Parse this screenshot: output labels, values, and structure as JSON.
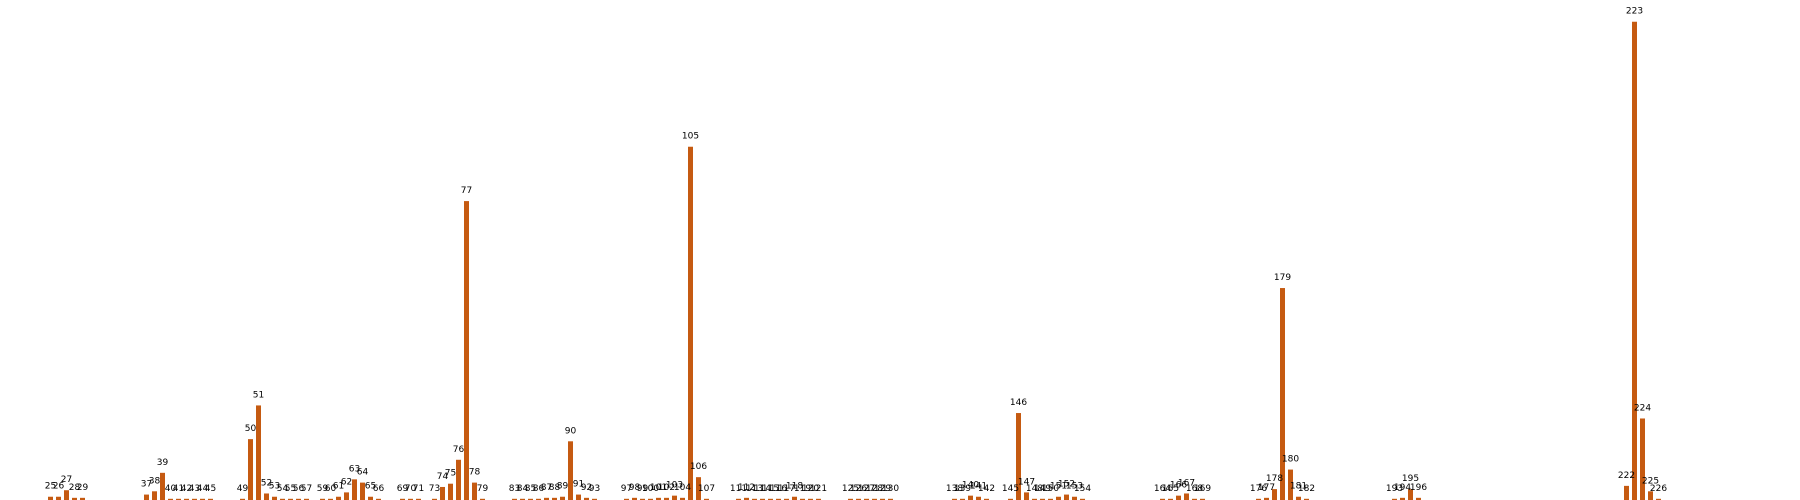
{
  "chart_data": {
    "type": "bar",
    "title": "",
    "xlabel": "",
    "ylabel": "",
    "ylim": [
      0,
      4.6
    ],
    "grid": false,
    "axes_visible": false,
    "bar_color": "#c55a11",
    "points": [
      {
        "x": 25,
        "y": 0.03,
        "label": "25"
      },
      {
        "x": 26,
        "y": 0.03,
        "label": "26"
      },
      {
        "x": 27,
        "y": 0.09,
        "label": "27"
      },
      {
        "x": 28,
        "y": 0.02,
        "label": "28"
      },
      {
        "x": 29,
        "y": 0.02,
        "label": "29"
      },
      {
        "x": 37,
        "y": 0.05,
        "label": "37"
      },
      {
        "x": 38,
        "y": 0.08,
        "label": "38"
      },
      {
        "x": 39,
        "y": 0.25,
        "label": "39"
      },
      {
        "x": 40,
        "y": 0.01,
        "label": "40"
      },
      {
        "x": 41,
        "y": 0.01,
        "label": "41"
      },
      {
        "x": 42,
        "y": 0.01,
        "label": "42"
      },
      {
        "x": 43,
        "y": 0.01,
        "label": "43"
      },
      {
        "x": 44,
        "y": 0.01,
        "label": "44"
      },
      {
        "x": 45,
        "y": 0.01,
        "label": "45"
      },
      {
        "x": 49,
        "y": 0.01,
        "label": "49"
      },
      {
        "x": 50,
        "y": 0.56,
        "label": "50"
      },
      {
        "x": 51,
        "y": 0.87,
        "label": "51"
      },
      {
        "x": 52,
        "y": 0.06,
        "label": "52"
      },
      {
        "x": 53,
        "y": 0.03,
        "label": "53"
      },
      {
        "x": 54,
        "y": 0.01,
        "label": "54"
      },
      {
        "x": 55,
        "y": 0.01,
        "label": "55"
      },
      {
        "x": 56,
        "y": 0.01,
        "label": "56"
      },
      {
        "x": 57,
        "y": 0.01,
        "label": "57"
      },
      {
        "x": 59,
        "y": 0.01,
        "label": "59"
      },
      {
        "x": 60,
        "y": 0.01,
        "label": "60"
      },
      {
        "x": 61,
        "y": 0.03,
        "label": "61"
      },
      {
        "x": 62,
        "y": 0.07,
        "label": "62"
      },
      {
        "x": 63,
        "y": 0.19,
        "label": "63"
      },
      {
        "x": 64,
        "y": 0.16,
        "label": "64"
      },
      {
        "x": 65,
        "y": 0.03,
        "label": "65"
      },
      {
        "x": 66,
        "y": 0.01,
        "label": "66"
      },
      {
        "x": 69,
        "y": 0.01,
        "label": "69"
      },
      {
        "x": 70,
        "y": 0.01,
        "label": "70"
      },
      {
        "x": 71,
        "y": 0.01,
        "label": "71"
      },
      {
        "x": 73,
        "y": 0.01,
        "label": "73"
      },
      {
        "x": 74,
        "y": 0.12,
        "label": "74"
      },
      {
        "x": 75,
        "y": 0.15,
        "label": "75"
      },
      {
        "x": 76,
        "y": 0.37,
        "label": "76"
      },
      {
        "x": 77,
        "y": 2.75,
        "label": "77"
      },
      {
        "x": 78,
        "y": 0.16,
        "label": "78"
      },
      {
        "x": 79,
        "y": 0.01,
        "label": "79"
      },
      {
        "x": 83,
        "y": 0.01,
        "label": "83"
      },
      {
        "x": 84,
        "y": 0.01,
        "label": "84"
      },
      {
        "x": 85,
        "y": 0.01,
        "label": "85"
      },
      {
        "x": 86,
        "y": 0.01,
        "label": "86"
      },
      {
        "x": 87,
        "y": 0.02,
        "label": "87"
      },
      {
        "x": 88,
        "y": 0.02,
        "label": "88"
      },
      {
        "x": 89,
        "y": 0.03,
        "label": "89"
      },
      {
        "x": 90,
        "y": 0.54,
        "label": "90"
      },
      {
        "x": 91,
        "y": 0.05,
        "label": "91"
      },
      {
        "x": 92,
        "y": 0.02,
        "label": "92"
      },
      {
        "x": 93,
        "y": 0.01,
        "label": "93"
      },
      {
        "x": 97,
        "y": 0.01,
        "label": "97"
      },
      {
        "x": 98,
        "y": 0.02,
        "label": "98"
      },
      {
        "x": 99,
        "y": 0.01,
        "label": "99"
      },
      {
        "x": 100,
        "y": 0.01,
        "label": "100"
      },
      {
        "x": 101,
        "y": 0.02,
        "label": "101"
      },
      {
        "x": 102,
        "y": 0.02,
        "label": "102"
      },
      {
        "x": 103,
        "y": 0.04,
        "label": "103"
      },
      {
        "x": 104,
        "y": 0.02,
        "label": "104"
      },
      {
        "x": 105,
        "y": 3.25,
        "label": "105"
      },
      {
        "x": 106,
        "y": 0.21,
        "label": "106"
      },
      {
        "x": 107,
        "y": 0.01,
        "label": "107"
      },
      {
        "x": 111,
        "y": 0.01,
        "label": "111"
      },
      {
        "x": 112,
        "y": 0.02,
        "label": "112"
      },
      {
        "x": 113,
        "y": 0.01,
        "label": "113"
      },
      {
        "x": 114,
        "y": 0.01,
        "label": "114"
      },
      {
        "x": 115,
        "y": 0.01,
        "label": "115"
      },
      {
        "x": 116,
        "y": 0.01,
        "label": "116"
      },
      {
        "x": 117,
        "y": 0.01,
        "label": "117"
      },
      {
        "x": 118,
        "y": 0.03,
        "label": "118"
      },
      {
        "x": 119,
        "y": 0.01,
        "label": "119"
      },
      {
        "x": 120,
        "y": 0.01,
        "label": "120"
      },
      {
        "x": 121,
        "y": 0.01,
        "label": "121"
      },
      {
        "x": 125,
        "y": 0.01,
        "label": "125"
      },
      {
        "x": 126,
        "y": 0.01,
        "label": "126"
      },
      {
        "x": 127,
        "y": 0.01,
        "label": "127"
      },
      {
        "x": 128,
        "y": 0.01,
        "label": "128"
      },
      {
        "x": 129,
        "y": 0.01,
        "label": "129"
      },
      {
        "x": 130,
        "y": 0.01,
        "label": "130"
      },
      {
        "x": 138,
        "y": 0.01,
        "label": "138"
      },
      {
        "x": 139,
        "y": 0.01,
        "label": "139"
      },
      {
        "x": 140,
        "y": 0.04,
        "label": "140"
      },
      {
        "x": 141,
        "y": 0.03,
        "label": "141"
      },
      {
        "x": 142,
        "y": 0.01,
        "label": "142"
      },
      {
        "x": 145,
        "y": 0.01,
        "label": "145"
      },
      {
        "x": 146,
        "y": 0.8,
        "label": "146"
      },
      {
        "x": 147,
        "y": 0.07,
        "label": "147"
      },
      {
        "x": 148,
        "y": 0.01,
        "label": "148"
      },
      {
        "x": 149,
        "y": 0.01,
        "label": "149"
      },
      {
        "x": 150,
        "y": 0.01,
        "label": "150"
      },
      {
        "x": 151,
        "y": 0.03,
        "label": "151"
      },
      {
        "x": 152,
        "y": 0.05,
        "label": "152"
      },
      {
        "x": 153,
        "y": 0.03,
        "label": "153"
      },
      {
        "x": 154,
        "y": 0.01,
        "label": "154"
      },
      {
        "x": 164,
        "y": 0.01,
        "label": "164"
      },
      {
        "x": 165,
        "y": 0.01,
        "label": "165"
      },
      {
        "x": 166,
        "y": 0.04,
        "label": "166"
      },
      {
        "x": 167,
        "y": 0.06,
        "label": "167"
      },
      {
        "x": 168,
        "y": 0.01,
        "label": "168"
      },
      {
        "x": 169,
        "y": 0.01,
        "label": "169"
      },
      {
        "x": 176,
        "y": 0.01,
        "label": "176"
      },
      {
        "x": 177,
        "y": 0.02,
        "label": "177"
      },
      {
        "x": 178,
        "y": 0.1,
        "label": "178"
      },
      {
        "x": 179,
        "y": 1.95,
        "label": "179"
      },
      {
        "x": 180,
        "y": 0.28,
        "label": "180"
      },
      {
        "x": 181,
        "y": 0.03,
        "label": "181"
      },
      {
        "x": 182,
        "y": 0.01,
        "label": "182"
      },
      {
        "x": 193,
        "y": 0.01,
        "label": "193"
      },
      {
        "x": 194,
        "y": 0.02,
        "label": "194"
      },
      {
        "x": 195,
        "y": 0.1,
        "label": "195"
      },
      {
        "x": 196,
        "y": 0.02,
        "label": "196"
      },
      {
        "x": 222,
        "y": 0.13,
        "label": "222"
      },
      {
        "x": 223,
        "y": 4.4,
        "label": "223"
      },
      {
        "x": 224,
        "y": 0.75,
        "label": "224"
      },
      {
        "x": 225,
        "y": 0.08,
        "label": "225"
      },
      {
        "x": 226,
        "y": 0.01,
        "label": "226"
      }
    ]
  }
}
